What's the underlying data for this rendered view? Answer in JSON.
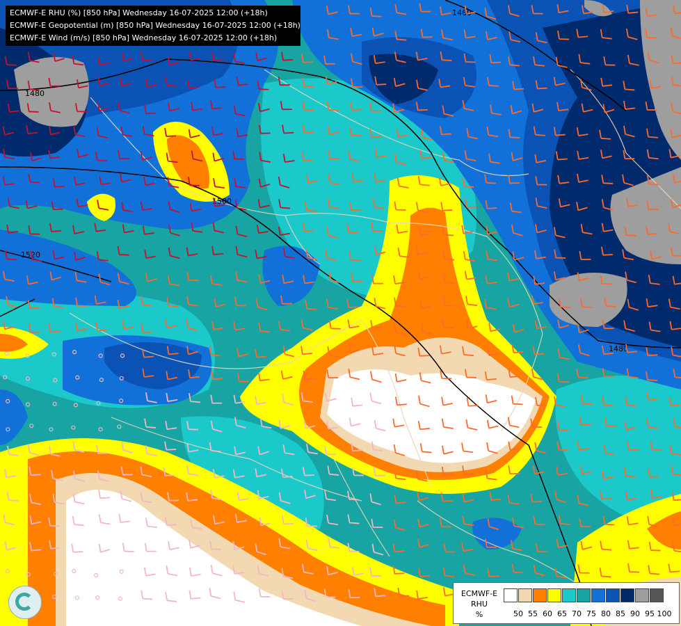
{
  "header": {
    "line1": "ECMWF-E RHU (%) [850 hPa] Wednesday 16-07-2025 12:00 (+18h)",
    "line2": "ECMWF-E Geopotential (m) [850 hPa] Wednesday 16-07-2025 12:00 (+18h)",
    "line3": "ECMWF-E Wind (m/s) [850 hPa] Wednesday 16-07-2025 12:00 (+18h)"
  },
  "contour_labels": [
    "1460",
    "1480",
    "1500",
    "1520",
    "1480"
  ],
  "legend": {
    "model": "ECMWF-E",
    "variable": "RHU",
    "unit": "%",
    "ticks": [
      "50",
      "55",
      "60",
      "65",
      "70",
      "75",
      "80",
      "85",
      "90",
      "95",
      "100"
    ],
    "colors": [
      "#ffffff",
      "#f3d9b1",
      "#ff8000",
      "#ffff00",
      "#1bc9cb",
      "#17a4a2",
      "#1271d9",
      "#0a53b4",
      "#002a6b",
      "#9e9e9e",
      "#555555"
    ]
  },
  "palette": {
    "rh50": "#ffffff",
    "rh55": "#f3d9b1",
    "rh60": "#ff8000",
    "rh65": "#ffff00",
    "rh70": "#1bc9cb",
    "rh75": "#17a4a2",
    "rh80": "#1271d9",
    "rh85": "#0a53b4",
    "rh90": "#002a6b",
    "rh95": "#9e9e9e"
  },
  "logo_icon": "ecmwf-swirl-icon"
}
